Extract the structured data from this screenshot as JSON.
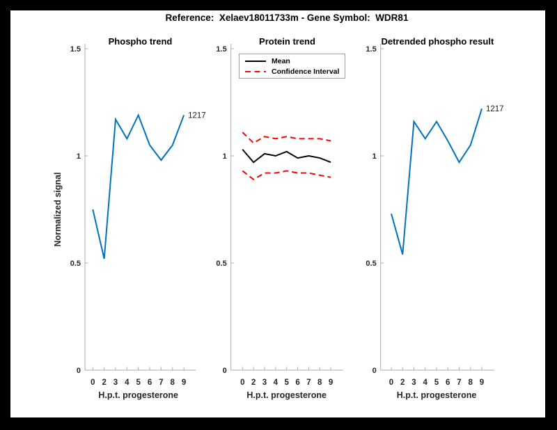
{
  "figure_title": "Reference:  Xelaev18011733m - Gene Symbol:  WDR81",
  "colors": {
    "phospho_blue": "#0072BD",
    "mean_black": "#000000",
    "ci_red": "#FF0000",
    "axis_line": "#ababab",
    "tick_text": "#262626",
    "label_text": "#1a1a1a",
    "background": "#ffffff",
    "border": "#000000"
  },
  "chart_data": [
    {
      "type": "line",
      "title": "Phospho trend",
      "categories": [
        "0",
        "2",
        "3",
        "4",
        "5",
        "6",
        "7",
        "8",
        "9"
      ],
      "series": [
        {
          "name": "1217",
          "color": "#0072BD",
          "style": "solid",
          "width": 2,
          "values": [
            0.75,
            0.52,
            1.17,
            1.08,
            1.19,
            1.05,
            0.98,
            1.05,
            1.19
          ]
        }
      ],
      "endpoint_label": "1217",
      "xlabel": "H.p.t. progesterone",
      "ylabel": "Normalized signal",
      "ylim": [
        0,
        1.5
      ],
      "yticks": [
        0,
        0.5,
        1,
        1.5
      ],
      "ytick_labels": [
        "0",
        "0.5",
        "1",
        "1.5"
      ],
      "grid": false
    },
    {
      "type": "line",
      "title": "Protein trend",
      "categories": [
        "0",
        "2",
        "3",
        "4",
        "5",
        "6",
        "7",
        "8",
        "9"
      ],
      "series": [
        {
          "name": "Mean",
          "color": "#000000",
          "style": "solid",
          "width": 2,
          "values": [
            1.03,
            0.97,
            1.01,
            1.0,
            1.02,
            0.99,
            1.0,
            0.99,
            0.97
          ]
        },
        {
          "name": "Confidence Interval upper",
          "color": "#FF0000",
          "style": "dashed",
          "width": 2,
          "values": [
            1.11,
            1.06,
            1.09,
            1.08,
            1.09,
            1.08,
            1.08,
            1.08,
            1.07
          ]
        },
        {
          "name": "Confidence Interval lower",
          "color": "#FF0000",
          "style": "dashed",
          "width": 2,
          "values": [
            0.93,
            0.89,
            0.92,
            0.92,
            0.93,
            0.92,
            0.92,
            0.91,
            0.9
          ]
        }
      ],
      "legend": {
        "position": "northwest",
        "entries": [
          {
            "label": "Mean",
            "color": "#000000",
            "style": "solid"
          },
          {
            "label": "Confidence Interval",
            "color": "#FF0000",
            "style": "dashed"
          }
        ]
      },
      "xlabel": "H.p.t. progesterone",
      "ylabel": "",
      "ylim": [
        0,
        1.5
      ],
      "yticks": [
        0,
        0.5,
        1,
        1.5
      ],
      "ytick_labels": [
        "0",
        "0.5",
        "1",
        "1.5"
      ],
      "grid": false
    },
    {
      "type": "line",
      "title": "Detrended phospho result",
      "categories": [
        "0",
        "2",
        "3",
        "4",
        "5",
        "6",
        "7",
        "8",
        "9"
      ],
      "series": [
        {
          "name": "1217",
          "color": "#0072BD",
          "style": "solid",
          "width": 2,
          "values": [
            0.73,
            0.54,
            1.16,
            1.08,
            1.16,
            1.07,
            0.97,
            1.05,
            1.22
          ]
        }
      ],
      "endpoint_label": "1217",
      "xlabel": "H.p.t. progesterone",
      "ylabel": "",
      "ylim": [
        0,
        1.5
      ],
      "yticks": [
        0,
        0.5,
        1,
        1.5
      ],
      "ytick_labels": [
        "0",
        "0.5",
        "1",
        "1.5"
      ],
      "grid": false
    }
  ]
}
